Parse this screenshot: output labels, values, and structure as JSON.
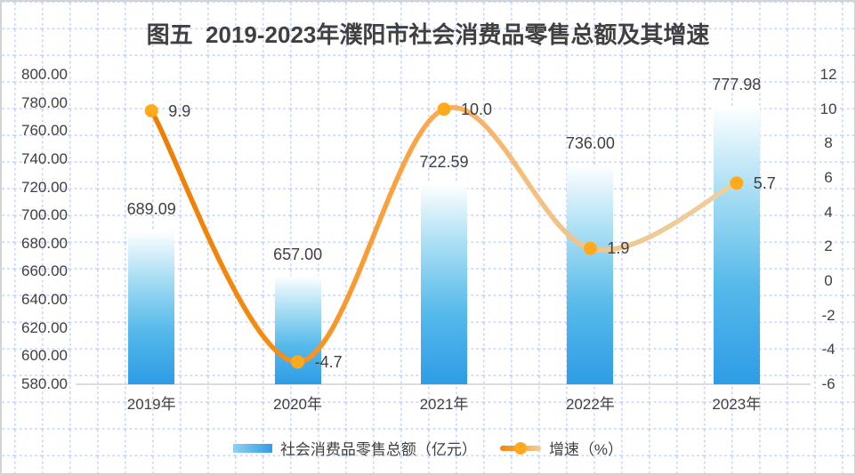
{
  "title": "图五  2019-2023年濮阳市社会消费品零售总额及其增速",
  "chart_data": {
    "type": "bar",
    "subtype": "combo-bar-line-dual-axis",
    "title": "图五  2019-2023年濮阳市社会消费品零售总额及其增速",
    "categories": [
      "2019年",
      "2020年",
      "2021年",
      "2022年",
      "2023年"
    ],
    "series": [
      {
        "name": "社会消费品零售总额（亿元）",
        "type": "bar",
        "axis": "left",
        "values": [
          689.09,
          657.0,
          722.59,
          736.0,
          777.98
        ],
        "labels": [
          "689.09",
          "657.00",
          "722.59",
          "736.00",
          "777.98"
        ]
      },
      {
        "name": "增速（%）",
        "type": "line",
        "axis": "right",
        "smooth": true,
        "values": [
          9.9,
          -4.7,
          10.0,
          1.9,
          5.7
        ],
        "labels": [
          "9.9",
          "-4.7",
          "10.0",
          "1.9",
          "5.7"
        ]
      }
    ],
    "left_axis": {
      "min": 580,
      "max": 800,
      "step": 20,
      "tick_labels": [
        "800.00",
        "780.00",
        "760.00",
        "740.00",
        "720.00",
        "700.00",
        "680.00",
        "660.00",
        "640.00",
        "620.00",
        "600.00",
        "580.00"
      ]
    },
    "right_axis": {
      "min": -6,
      "max": 12,
      "step": 2,
      "tick_labels": [
        "12",
        "10",
        "8",
        "6",
        "4",
        "2",
        "0",
        "-2",
        "-4",
        "-6"
      ]
    },
    "legend_position": "bottom",
    "grid": "dotted light-blue spreadsheet grid background"
  },
  "legend": {
    "bar_label": "社会消费品零售总额（亿元）",
    "line_label": "增速（%）"
  },
  "colors": {
    "text": "#3f3f3f",
    "grid_dots": "#c9d5f8",
    "axis_line": "#dcdcdc",
    "bar_top": "#ffffff",
    "bar_mid": "#55b9ea",
    "bar_bottom": "#2e9ce6",
    "line_start": "#ee7c02",
    "line_mid": "#f9a648",
    "line_end": "#edd0a2",
    "marker": "#ffaa1c"
  }
}
